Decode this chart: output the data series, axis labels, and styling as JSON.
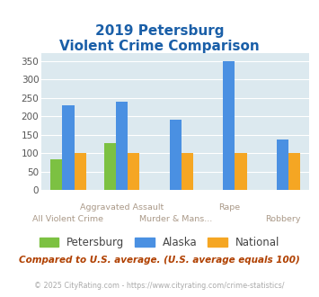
{
  "title_line1": "2019 Petersburg",
  "title_line2": "Violent Crime Comparison",
  "cat_labels_line1": [
    "",
    "Aggravated Assault",
    "",
    "Rape",
    ""
  ],
  "cat_labels_line2": [
    "All Violent Crime",
    "",
    "Murder & Mans...",
    "",
    "Robbery"
  ],
  "series": {
    "Petersburg": [
      83,
      128,
      0,
      0,
      0
    ],
    "Alaska": [
      230,
      240,
      190,
      348,
      138
    ],
    "National": [
      100,
      100,
      100,
      100,
      100
    ]
  },
  "colors": {
    "Petersburg": "#7cc142",
    "Alaska": "#4a90e2",
    "National": "#f5a623"
  },
  "ylim": [
    0,
    370
  ],
  "yticks": [
    0,
    50,
    100,
    150,
    200,
    250,
    300,
    350
  ],
  "plot_bg": "#dce9ef",
  "title_color": "#1a5fa8",
  "footer1": "Compared to U.S. average. (U.S. average equals 100)",
  "footer2": "© 2025 CityRating.com - https://www.cityrating.com/crime-statistics/",
  "footer1_color": "#b04000",
  "footer2_color": "#aaaaaa",
  "label_color": "#aa9988"
}
